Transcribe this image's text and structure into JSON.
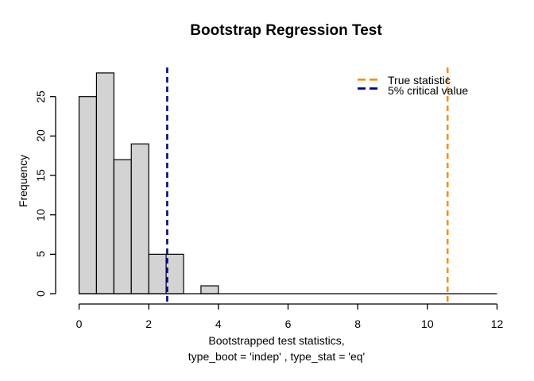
{
  "chart_data": {
    "type": "bar",
    "subtype": "histogram",
    "title": "Bootstrap Regression Test",
    "xlabel_line1": "Bootstrapped test statistics,",
    "xlabel_line2": "type_boot = 'indep' , type_stat = 'eq'",
    "ylabel": "Frequency",
    "breaks_start": 0,
    "bin_width": 0.5,
    "counts": [
      25,
      28,
      17,
      19,
      5,
      5,
      0,
      1
    ],
    "xlim": [
      0,
      12
    ],
    "ylim": [
      0,
      28
    ],
    "x_ticks": [
      0,
      2,
      4,
      6,
      8,
      10,
      12
    ],
    "y_ticks": [
      0,
      5,
      10,
      15,
      20,
      25
    ],
    "grid": false,
    "bar_fill": "#d3d3d3",
    "bar_stroke": "#000000",
    "axis_color": "#000000",
    "background": "#ffffff",
    "vlines": [
      {
        "name": "true-statistic",
        "value": 10.58,
        "color": "#ff8c00",
        "style": "dashed",
        "label": "True statistic"
      },
      {
        "name": "critical-value",
        "value": 2.53,
        "color": "#000080",
        "style": "dashed",
        "label": "5% critical value"
      }
    ],
    "legend": {
      "position": "top-right",
      "box": false,
      "entries": [
        {
          "label": "True statistic",
          "color": "#ff8c00",
          "line_style": "dashed"
        },
        {
          "label": "5% critical value",
          "color": "#000080",
          "line_style": "dashed"
        }
      ]
    }
  }
}
